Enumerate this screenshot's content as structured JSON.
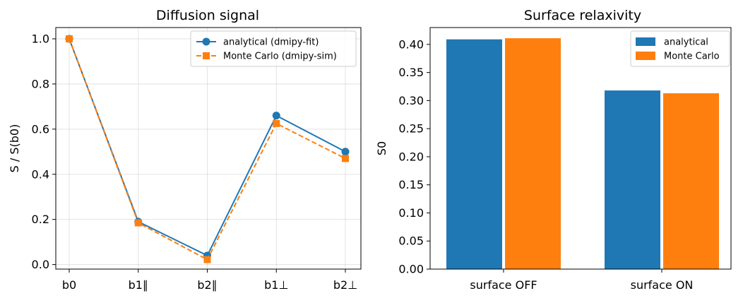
{
  "chart_data": [
    {
      "type": "line",
      "title": "Diffusion signal",
      "xlabel": "",
      "ylabel": "S / S(b0)",
      "categories": [
        "b0",
        "b1∥",
        "b2∥",
        "b1⊥",
        "b2⊥"
      ],
      "ylim": [
        -0.02,
        1.05
      ],
      "yticks": [
        "0.0",
        "0.2",
        "0.4",
        "0.6",
        "0.8",
        "1.0"
      ],
      "grid": true,
      "legend": "upper right",
      "series": [
        {
          "name": "analytical (dmipy-fit)",
          "values": [
            1.0,
            0.19,
            0.04,
            0.66,
            0.5
          ],
          "color": "#1f77b4",
          "marker": "circle",
          "linestyle": "solid"
        },
        {
          "name": "Monte Carlo (dmipy-sim)",
          "values": [
            1.0,
            0.185,
            0.022,
            0.625,
            0.47
          ],
          "color": "#ff7f0e",
          "marker": "square",
          "linestyle": "dashed"
        }
      ]
    },
    {
      "type": "bar",
      "title": "Surface relaxivity",
      "xlabel": "",
      "ylabel": "S0",
      "categories": [
        "surface OFF",
        "surface ON"
      ],
      "ylim": [
        0,
        0.43
      ],
      "yticks": [
        "0.00",
        "0.05",
        "0.10",
        "0.15",
        "0.20",
        "0.25",
        "0.30",
        "0.35",
        "0.40"
      ],
      "grid": false,
      "legend": "upper right",
      "series": [
        {
          "name": "analytical",
          "values": [
            0.409,
            0.318
          ],
          "color": "#1f77b4"
        },
        {
          "name": "Monte Carlo",
          "values": [
            0.411,
            0.313
          ],
          "color": "#ff7f0e"
        }
      ]
    }
  ]
}
